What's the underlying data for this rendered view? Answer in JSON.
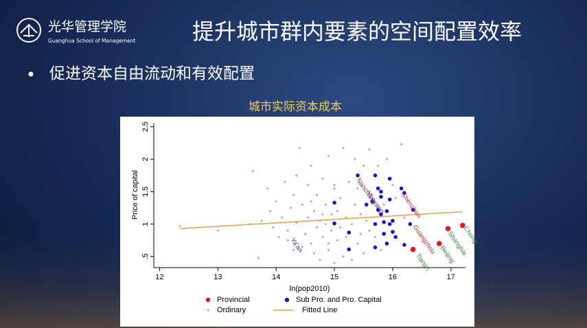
{
  "logo": {
    "name": "光华管理学院",
    "subtitle": "Guanghua School of Management"
  },
  "header": {
    "title": "提升城市群内要素的空间配置效率"
  },
  "bullet": "促进资本自由流动和有效配置",
  "chart_data": {
    "type": "scatter",
    "title": "城市实际资本成本",
    "xlabel": "ln(pop2010)",
    "ylabel": "Price of capital",
    "xlim": [
      11.9,
      17.25
    ],
    "ylim": [
      0.35,
      2.55
    ],
    "xticks": [
      12,
      13,
      14,
      15,
      16,
      17
    ],
    "yticks": [
      {
        "value": 0.5,
        "label": ".5"
      },
      1,
      1.5,
      2,
      2.5
    ],
    "series": [
      {
        "name": "Provincial",
        "color": "#e8141c",
        "type": "scatter",
        "x": [
          16.35,
          16.8,
          16.95,
          17.2
        ],
        "values": [
          0.61,
          0.7,
          0.93,
          0.98
        ]
      },
      {
        "name": "Sub Pro. and Pro. Capital",
        "color": "#1a12c8",
        "type": "scatter",
        "x": [
          15.4,
          15.7,
          15.95,
          16.15,
          15.75,
          15.8,
          16.2,
          15.8,
          15.65,
          15.95,
          15.0,
          15.55,
          15.75,
          15.9,
          16.35,
          15.8,
          15.0,
          15.85,
          15.95,
          16.0,
          15.7,
          16.3,
          16.0,
          15.25,
          15.85,
          16.05,
          15.9,
          16.2,
          15.7,
          15.25
        ],
        "values": [
          1.75,
          1.75,
          1.7,
          1.55,
          1.55,
          1.5,
          1.48,
          1.42,
          1.35,
          1.38,
          1.33,
          1.3,
          1.22,
          1.2,
          1.22,
          1.15,
          1.01,
          1.03,
          1.0,
          1.05,
          1.0,
          1.0,
          0.88,
          0.87,
          0.85,
          0.8,
          0.7,
          0.68,
          0.64,
          0.61
        ]
      },
      {
        "name": "Ordinary",
        "color": "#b4b4b4",
        "type": "scatter",
        "x": [
          12.35,
          13.0,
          13.55,
          13.6,
          13.7,
          13.75,
          13.85,
          13.9,
          13.95,
          14.0,
          14.05,
          14.1,
          14.15,
          14.2,
          14.25,
          14.3,
          14.3,
          14.35,
          14.4,
          14.45,
          14.5,
          14.55,
          14.55,
          14.6,
          14.6,
          14.65,
          14.7,
          14.7,
          14.75,
          14.75,
          14.8,
          14.8,
          14.85,
          14.85,
          14.9,
          14.9,
          14.95,
          14.95,
          15.0,
          15.0,
          15.05,
          15.05,
          15.1,
          15.1,
          15.15,
          15.15,
          15.2,
          15.2,
          15.25,
          15.3,
          15.3,
          15.35,
          15.35,
          15.4,
          15.45,
          15.45,
          15.5,
          15.5,
          15.55,
          15.6,
          15.6,
          15.65,
          15.7,
          15.75,
          15.8,
          15.85,
          15.9,
          16.0,
          16.05,
          16.15,
          16.2,
          14.2,
          14.45,
          14.65,
          14.9,
          15.0,
          14.6,
          14.35,
          15.4,
          14.8
        ],
        "values": [
          0.97,
          0.9,
          1.0,
          1.82,
          0.48,
          1.05,
          1.55,
          1.2,
          0.95,
          1.35,
          0.8,
          1.1,
          1.65,
          0.9,
          1.25,
          1.45,
          0.6,
          1.02,
          2.17,
          1.3,
          0.85,
          1.1,
          1.6,
          0.7,
          1.9,
          1.2,
          0.95,
          1.45,
          0.45,
          1.05,
          1.7,
          0.8,
          1.3,
          1.0,
          2.05,
          0.6,
          1.15,
          0.9,
          1.55,
          0.4,
          1.2,
          0.75,
          1.4,
          0.95,
          2.17,
          0.5,
          1.1,
          0.8,
          1.65,
          1.0,
          0.45,
          1.3,
          2.0,
          0.7,
          1.15,
          0.85,
          1.9,
          0.55,
          1.05,
          0.9,
          2.15,
          1.45,
          0.8,
          1.9,
          0.6,
          1.3,
          2.0,
          1.6,
          1.4,
          2.23,
          1.1,
          0.75,
          0.65,
          0.55,
          0.7,
          1.6,
          1.35,
          1.75,
          1.55,
          1.15
        ]
      },
      {
        "name": "Fitted Line",
        "color": "#e8a040",
        "type": "line",
        "x": [
          12.35,
          17.2
        ],
        "values": [
          0.93,
          1.19
        ]
      }
    ],
    "annotations": [
      {
        "text": "Nanchang",
        "x": 15.38,
        "y": 1.72,
        "color": "#a0304a"
      },
      {
        "text": "Shenzhen",
        "x": 16.15,
        "y": 1.5,
        "color": "#c0303a"
      },
      {
        "text": "Yueyang",
        "x": 15.55,
        "y": 1.52,
        "color": "#3a3a8a"
      },
      {
        "text": "Guangzhou",
        "x": 16.35,
        "y": 1.0,
        "color": "#c03030"
      },
      {
        "text": "Chong",
        "x": 17.22,
        "y": 0.98,
        "color": "#3a8a3a"
      },
      {
        "text": "Shanghai",
        "x": 16.95,
        "y": 0.9,
        "color": "#3a8a3a"
      },
      {
        "text": "Beijing",
        "x": 16.82,
        "y": 0.68,
        "color": "#3a8a3a"
      },
      {
        "text": "Tianjin",
        "x": 16.4,
        "y": 0.56,
        "color": "#3a8a3a"
      },
      {
        "text": "Ya'an",
        "x": 14.25,
        "y": 0.8,
        "color": "#3a3a8a"
      }
    ]
  }
}
